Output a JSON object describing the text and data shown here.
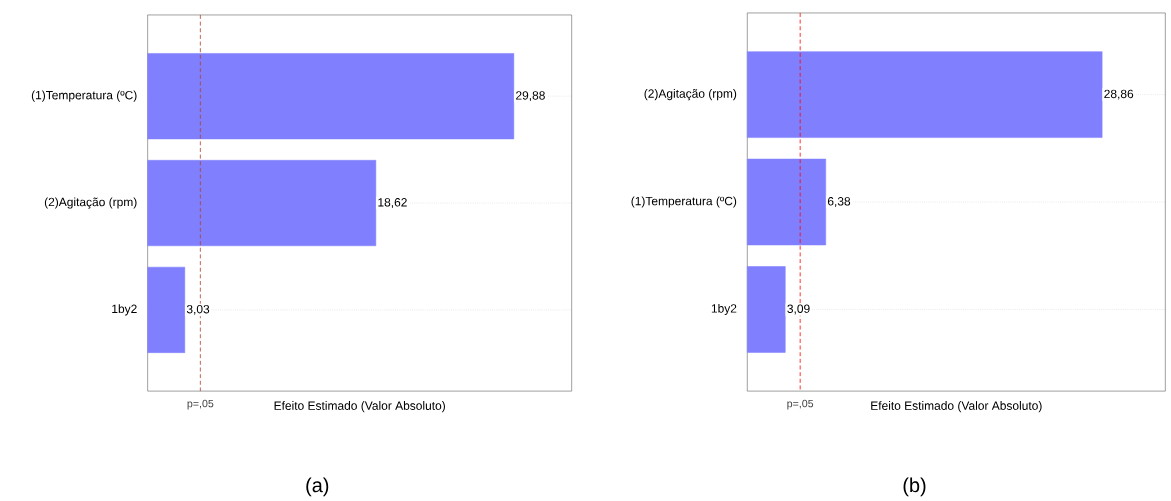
{
  "chart_data": [
    {
      "type": "bar",
      "orientation": "horizontal",
      "categories": [
        "(1)Temperatura (ºC)",
        "(2)Agitação (rpm)",
        "1by2"
      ],
      "values": [
        29.88,
        18.62,
        3.03
      ],
      "value_labels": [
        "29,88",
        "18,62",
        "3,03"
      ],
      "color": "#8080ff",
      "xlim": [
        0,
        34.6
      ],
      "xlabel": "Efeito Estimado (Valor Absoluto)",
      "grid": "y",
      "ref_lines": [
        {
          "axis": "x",
          "value": 4.3,
          "label": "p=,05",
          "color": "#b0402a",
          "line_style": "dashed"
        }
      ],
      "annotations": [
        "(a)"
      ]
    },
    {
      "type": "bar",
      "orientation": "horizontal",
      "categories": [
        "(2)Agitação (rpm)",
        "(1)Temperatura (ºC)",
        "1by2"
      ],
      "values": [
        28.86,
        6.38,
        3.09
      ],
      "value_labels": [
        "28,86",
        "6,38",
        "3,09"
      ],
      "color": "#8080ff",
      "xlim": [
        0,
        34
      ],
      "xlabel": "Efeito Estimado (Valor Absoluto)",
      "grid": "y",
      "ref_lines": [
        {
          "axis": "x",
          "value": 4.3,
          "label": "p=,05",
          "color": "#ff0000",
          "line_style": "dashed"
        }
      ],
      "annotations": [
        "(b)"
      ]
    }
  ]
}
